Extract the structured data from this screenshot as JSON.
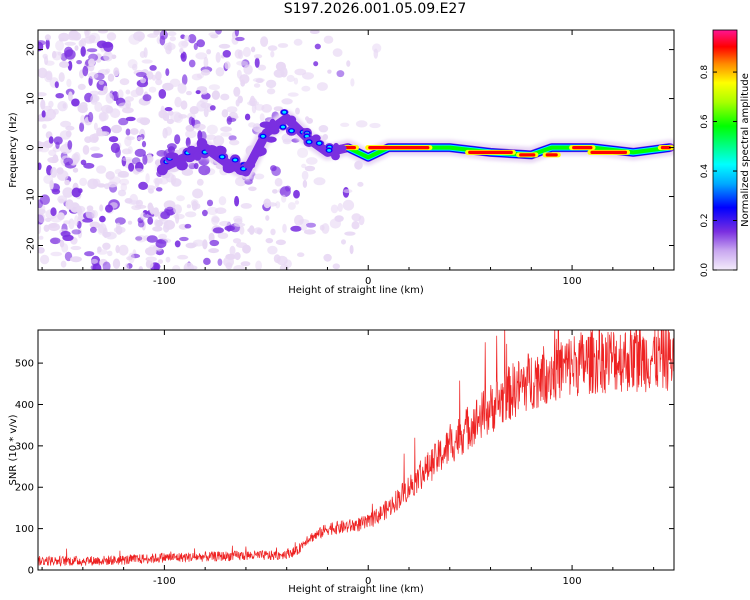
{
  "title": "S197.2026.001.05.09.E27",
  "chart_data": [
    {
      "type": "heatmap",
      "xlabel": "Height of straight line (km)",
      "ylabel": "Frequency (Hz)",
      "xlim": [
        -162,
        150
      ],
      "ylim": [
        -25,
        24
      ],
      "xticks": [
        -100,
        0,
        100
      ],
      "xtick_labels": [
        "-100",
        "0",
        "100"
      ],
      "yticks": [
        -20,
        -10,
        0,
        10,
        20
      ],
      "ytick_labels": [
        "-20",
        "-10",
        "0",
        "10",
        "20"
      ],
      "colorbar": {
        "label": "Normalized spectral amplitude",
        "range": [
          0.0,
          0.97
        ],
        "ticks": [
          0.0,
          0.2,
          0.4,
          0.6,
          0.8
        ],
        "tick_labels": [
          "0.0",
          "0.2",
          "0.4",
          "0.6",
          "0.8"
        ],
        "colormap": [
          "#e8d8f4",
          "#7a2fe0",
          "#0000ff",
          "#00e5ff",
          "#00ff00",
          "#ffff00",
          "#ff8800",
          "#ff0000",
          "#ff1493"
        ]
      },
      "ridge": {
        "name": "dominant frequency track",
        "x": [
          -100,
          -90,
          -80,
          -70,
          -60,
          -50,
          -40,
          -30,
          -20,
          -10,
          0,
          10,
          20,
          40,
          60,
          80,
          90,
          100,
          110,
          130,
          148
        ],
        "y": [
          -4,
          -2,
          0,
          -3,
          -5,
          3,
          6,
          2,
          -1,
          0,
          -2,
          0,
          0,
          0,
          -1,
          -1.5,
          0,
          0,
          0,
          -1,
          0
        ]
      }
    },
    {
      "type": "line",
      "xlabel": "Height of straight line (km)",
      "ylabel": "SNR (10 * v/v)",
      "xlim": [
        -162,
        150
      ],
      "ylim": [
        0,
        580
      ],
      "xticks": [
        -100,
        0,
        100
      ],
      "xtick_labels": [
        "-100",
        "0",
        "100"
      ],
      "yticks": [
        0,
        100,
        200,
        300,
        400,
        500
      ],
      "ytick_labels": [
        "0",
        "100",
        "200",
        "300",
        "400",
        "500"
      ],
      "series": [
        {
          "name": "SNR",
          "color": "#ee2222",
          "x": [
            -162,
            -140,
            -120,
            -100,
            -80,
            -60,
            -45,
            -35,
            -30,
            -25,
            -20,
            -10,
            0,
            10,
            20,
            30,
            40,
            50,
            60,
            70,
            80,
            90,
            100,
            110,
            120,
            130,
            140,
            150
          ],
          "y": [
            22,
            22,
            24,
            30,
            32,
            35,
            35,
            45,
            75,
            85,
            100,
            105,
            115,
            150,
            200,
            250,
            300,
            350,
            390,
            430,
            460,
            480,
            495,
            505,
            510,
            510,
            512,
            515
          ]
        }
      ]
    }
  ]
}
